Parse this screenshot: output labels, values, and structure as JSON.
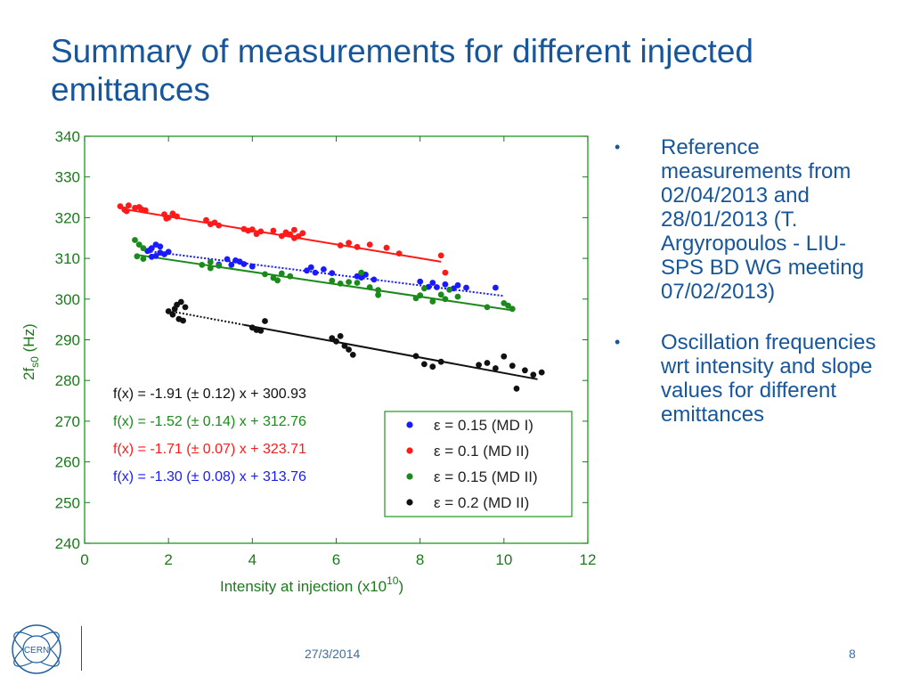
{
  "slide": {
    "title": "Summary of measurements for different injected emittances",
    "bullets": [
      "Reference measurements from 02/04/2013 and 28/01/2013 (T. Argyropoulos -  LIU-SPS BD WG meeting 07/02/2013)",
      "Oscillation frequencies wrt intensity and slope values for different emittances"
    ],
    "footer": {
      "date": "27/3/2014",
      "page": "8",
      "logo_text": "CERN"
    }
  },
  "colors": {
    "title": "#17569b",
    "axis_text": "#1a7a1a",
    "series": [
      "#1a1aff",
      "#ff1a1a",
      "#1a8a1a",
      "#111111"
    ]
  },
  "chart_data": {
    "type": "scatter",
    "xlabel": "Intensity at injection (x10",
    "xlabel_exp": "10",
    "xlabel_end": ")",
    "ylabel_main": "2f",
    "ylabel_sub": "s0",
    "ylabel_unit": " (Hz)",
    "xlim": [
      0,
      12
    ],
    "ylim": [
      240,
      340
    ],
    "xticks": [
      0,
      2,
      4,
      6,
      8,
      10,
      12
    ],
    "yticks": [
      240,
      250,
      260,
      270,
      280,
      290,
      300,
      310,
      320,
      330,
      340
    ],
    "grid": false,
    "legend_placement": "bottom-right",
    "series": [
      {
        "name": "ε = 0.15 (MD I)",
        "color": "#1a1aff",
        "fit": "dotted",
        "fit_label": "f(x) = -1.30 (± 0.08) x + 313.76",
        "slope": -1.3,
        "intercept": 313.76,
        "fit_range": [
          1.5,
          10
        ],
        "points": [
          [
            1.5,
            311.8
          ],
          [
            1.6,
            312.5
          ],
          [
            1.7,
            310.6
          ],
          [
            1.8,
            312.9
          ],
          [
            1.9,
            311.0
          ],
          [
            1.7,
            313.4
          ],
          [
            1.6,
            310.4
          ],
          [
            1.8,
            311.4
          ],
          [
            2.0,
            311.6
          ],
          [
            1.55,
            312.0
          ],
          [
            3.2,
            308.5
          ],
          [
            3.4,
            309.8
          ],
          [
            3.5,
            308.4
          ],
          [
            3.6,
            309.5
          ],
          [
            3.8,
            308.6
          ],
          [
            4.0,
            308.0
          ],
          [
            3.7,
            309.2
          ],
          [
            5.3,
            307.0
          ],
          [
            5.5,
            306.5
          ],
          [
            5.7,
            307.3
          ],
          [
            5.9,
            306.4
          ],
          [
            5.4,
            307.8
          ],
          [
            6.5,
            305.6
          ],
          [
            6.7,
            306.0
          ],
          [
            6.9,
            304.8
          ],
          [
            6.6,
            305.3
          ],
          [
            8.0,
            304.3
          ],
          [
            8.2,
            303.0
          ],
          [
            8.4,
            302.9
          ],
          [
            8.6,
            303.6
          ],
          [
            8.8,
            302.6
          ],
          [
            8.9,
            303.4
          ],
          [
            9.1,
            302.8
          ],
          [
            8.3,
            304.0
          ],
          [
            9.8,
            302.8
          ]
        ]
      },
      {
        "name": "ε = 0.1 (MD II)",
        "color": "#ff1a1a",
        "fit": "solid",
        "fit_label": "f(x) = -1.71 (± 0.07) x + 323.71",
        "slope": -1.71,
        "intercept": 323.71,
        "fit_range": [
          0.9,
          8.5
        ],
        "points": [
          [
            0.85,
            322.8
          ],
          [
            0.95,
            322.0
          ],
          [
            1.05,
            323.0
          ],
          [
            1.2,
            322.4
          ],
          [
            1.35,
            322.1
          ],
          [
            1.45,
            321.8
          ],
          [
            1.0,
            321.6
          ],
          [
            1.3,
            322.6
          ],
          [
            1.9,
            320.8
          ],
          [
            2.0,
            320.0
          ],
          [
            2.1,
            321.0
          ],
          [
            2.2,
            320.3
          ],
          [
            1.95,
            319.8
          ],
          [
            2.9,
            319.4
          ],
          [
            3.0,
            318.4
          ],
          [
            3.1,
            318.8
          ],
          [
            3.2,
            318.1
          ],
          [
            3.8,
            317.2
          ],
          [
            3.9,
            316.8
          ],
          [
            4.0,
            317.1
          ],
          [
            4.1,
            316.0
          ],
          [
            4.2,
            316.6
          ],
          [
            4.5,
            316.8
          ],
          [
            4.7,
            315.5
          ],
          [
            4.8,
            316.4
          ],
          [
            4.9,
            315.9
          ],
          [
            5.0,
            317.0
          ],
          [
            5.1,
            315.4
          ],
          [
            5.2,
            316.2
          ],
          [
            5.0,
            315.0
          ],
          [
            6.1,
            313.2
          ],
          [
            6.3,
            313.8
          ],
          [
            6.5,
            312.8
          ],
          [
            6.8,
            313.4
          ],
          [
            7.2,
            312.6
          ],
          [
            7.5,
            311.2
          ],
          [
            8.5,
            310.7
          ],
          [
            8.6,
            306.5
          ]
        ]
      },
      {
        "name": "ε = 0.15 (MD II)",
        "color": "#1a8a1a",
        "fit": "solid",
        "fit_label": "f(x) = -1.52 (± 0.14) x + 312.76",
        "slope": -1.52,
        "intercept": 312.76,
        "fit_range": [
          1.2,
          10.2
        ],
        "points": [
          [
            1.2,
            314.5
          ],
          [
            1.3,
            313.4
          ],
          [
            1.4,
            312.5
          ],
          [
            1.25,
            310.5
          ],
          [
            1.4,
            309.9
          ],
          [
            2.8,
            308.4
          ],
          [
            3.0,
            307.6
          ],
          [
            3.2,
            308.2
          ],
          [
            3.0,
            309.1
          ],
          [
            4.3,
            306.1
          ],
          [
            4.5,
            305.2
          ],
          [
            4.7,
            306.3
          ],
          [
            4.9,
            305.6
          ],
          [
            4.6,
            304.6
          ],
          [
            5.9,
            304.5
          ],
          [
            6.1,
            303.8
          ],
          [
            6.3,
            304.2
          ],
          [
            6.6,
            306.5
          ],
          [
            6.8,
            302.9
          ],
          [
            7.0,
            302.2
          ],
          [
            6.5,
            304.0
          ],
          [
            7.0,
            301.0
          ],
          [
            7.9,
            300.2
          ],
          [
            8.0,
            300.9
          ],
          [
            8.1,
            302.6
          ],
          [
            8.3,
            299.4
          ],
          [
            8.5,
            301.1
          ],
          [
            8.6,
            300.0
          ],
          [
            8.7,
            302.3
          ],
          [
            8.9,
            300.6
          ],
          [
            9.6,
            298.0
          ],
          [
            10.1,
            298.4
          ],
          [
            10.2,
            297.6
          ],
          [
            10.0,
            299.0
          ]
        ]
      },
      {
        "name": "ε = 0.2 (MD II)",
        "color": "#111111",
        "fit": "dotted-then-solid",
        "fit_label": "f(x) = -1.91 (± 0.12) x + 300.93",
        "slope": -1.91,
        "intercept": 300.93,
        "fit_range": [
          2.0,
          10.8
        ],
        "points": [
          [
            2.0,
            297.0
          ],
          [
            2.1,
            296.2
          ],
          [
            2.2,
            298.6
          ],
          [
            2.25,
            295.1
          ],
          [
            2.3,
            299.3
          ],
          [
            2.4,
            298.0
          ],
          [
            2.35,
            294.7
          ],
          [
            2.15,
            297.6
          ],
          [
            4.0,
            293.0
          ],
          [
            4.2,
            292.2
          ],
          [
            4.3,
            294.6
          ],
          [
            4.1,
            292.4
          ],
          [
            5.9,
            290.4
          ],
          [
            6.0,
            289.6
          ],
          [
            6.2,
            288.5
          ],
          [
            6.3,
            287.6
          ],
          [
            6.4,
            286.3
          ],
          [
            6.1,
            290.9
          ],
          [
            7.9,
            286.0
          ],
          [
            8.1,
            284.0
          ],
          [
            8.3,
            283.4
          ],
          [
            8.5,
            284.6
          ],
          [
            9.4,
            283.8
          ],
          [
            9.6,
            284.3
          ],
          [
            9.8,
            283.0
          ],
          [
            10.0,
            285.9
          ],
          [
            10.2,
            283.6
          ],
          [
            10.5,
            282.5
          ],
          [
            10.7,
            281.4
          ],
          [
            10.9,
            282.0
          ],
          [
            10.3,
            278.0
          ]
        ]
      }
    ]
  }
}
